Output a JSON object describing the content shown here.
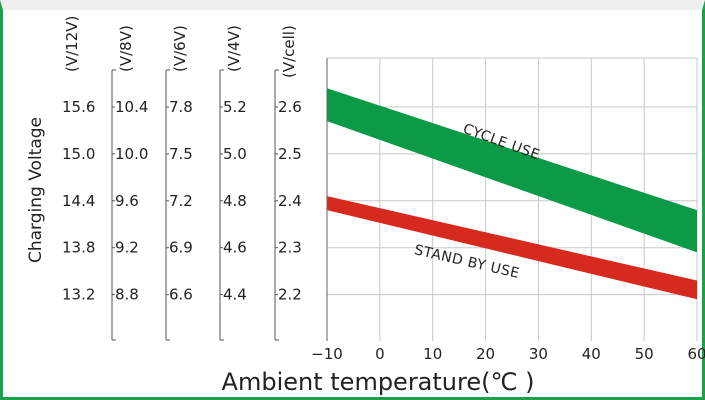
{
  "chart_data": {
    "type": "area",
    "title": "",
    "xlabel": "Ambient temperature(℃ )",
    "ylabel": "Charging Voltage",
    "xlim": [
      -10,
      60
    ],
    "ylim": [
      2.1,
      2.7
    ],
    "x_ticks": [
      "-10",
      "0",
      "10",
      "20",
      "30",
      "40",
      "50",
      "60"
    ],
    "y_scales": [
      {
        "unit": "(V/12V)",
        "ticks": [
          "15.6",
          "15.0",
          "14.4",
          "13.8",
          "13.2"
        ]
      },
      {
        "unit": "(V/8V)",
        "ticks": [
          "10.4",
          "10.0",
          "9.6",
          "9.2",
          "8.8"
        ]
      },
      {
        "unit": "(V/6V)",
        "ticks": [
          "7.8",
          "7.5",
          "7.2",
          "6.9",
          "6.6"
        ]
      },
      {
        "unit": "(V/4V)",
        "ticks": [
          "5.2",
          "5.0",
          "4.8",
          "4.6",
          "4.4"
        ]
      },
      {
        "unit": "(V/cell)",
        "ticks": [
          "2.6",
          "2.5",
          "2.4",
          "2.3",
          "2.2"
        ]
      }
    ],
    "y_tick_values": [
      2.6,
      2.5,
      2.4,
      2.3,
      2.2
    ],
    "grid": true,
    "series": [
      {
        "name": "CYCLE USE",
        "color": "#0b9a45",
        "x": [
          -10,
          60
        ],
        "upper": [
          2.64,
          2.38
        ],
        "lower": [
          2.57,
          2.29
        ]
      },
      {
        "name": "STAND BY USE",
        "color": "#d72a1e",
        "x": [
          -10,
          60
        ],
        "upper": [
          2.41,
          2.23
        ],
        "lower": [
          2.38,
          2.19
        ]
      }
    ]
  }
}
